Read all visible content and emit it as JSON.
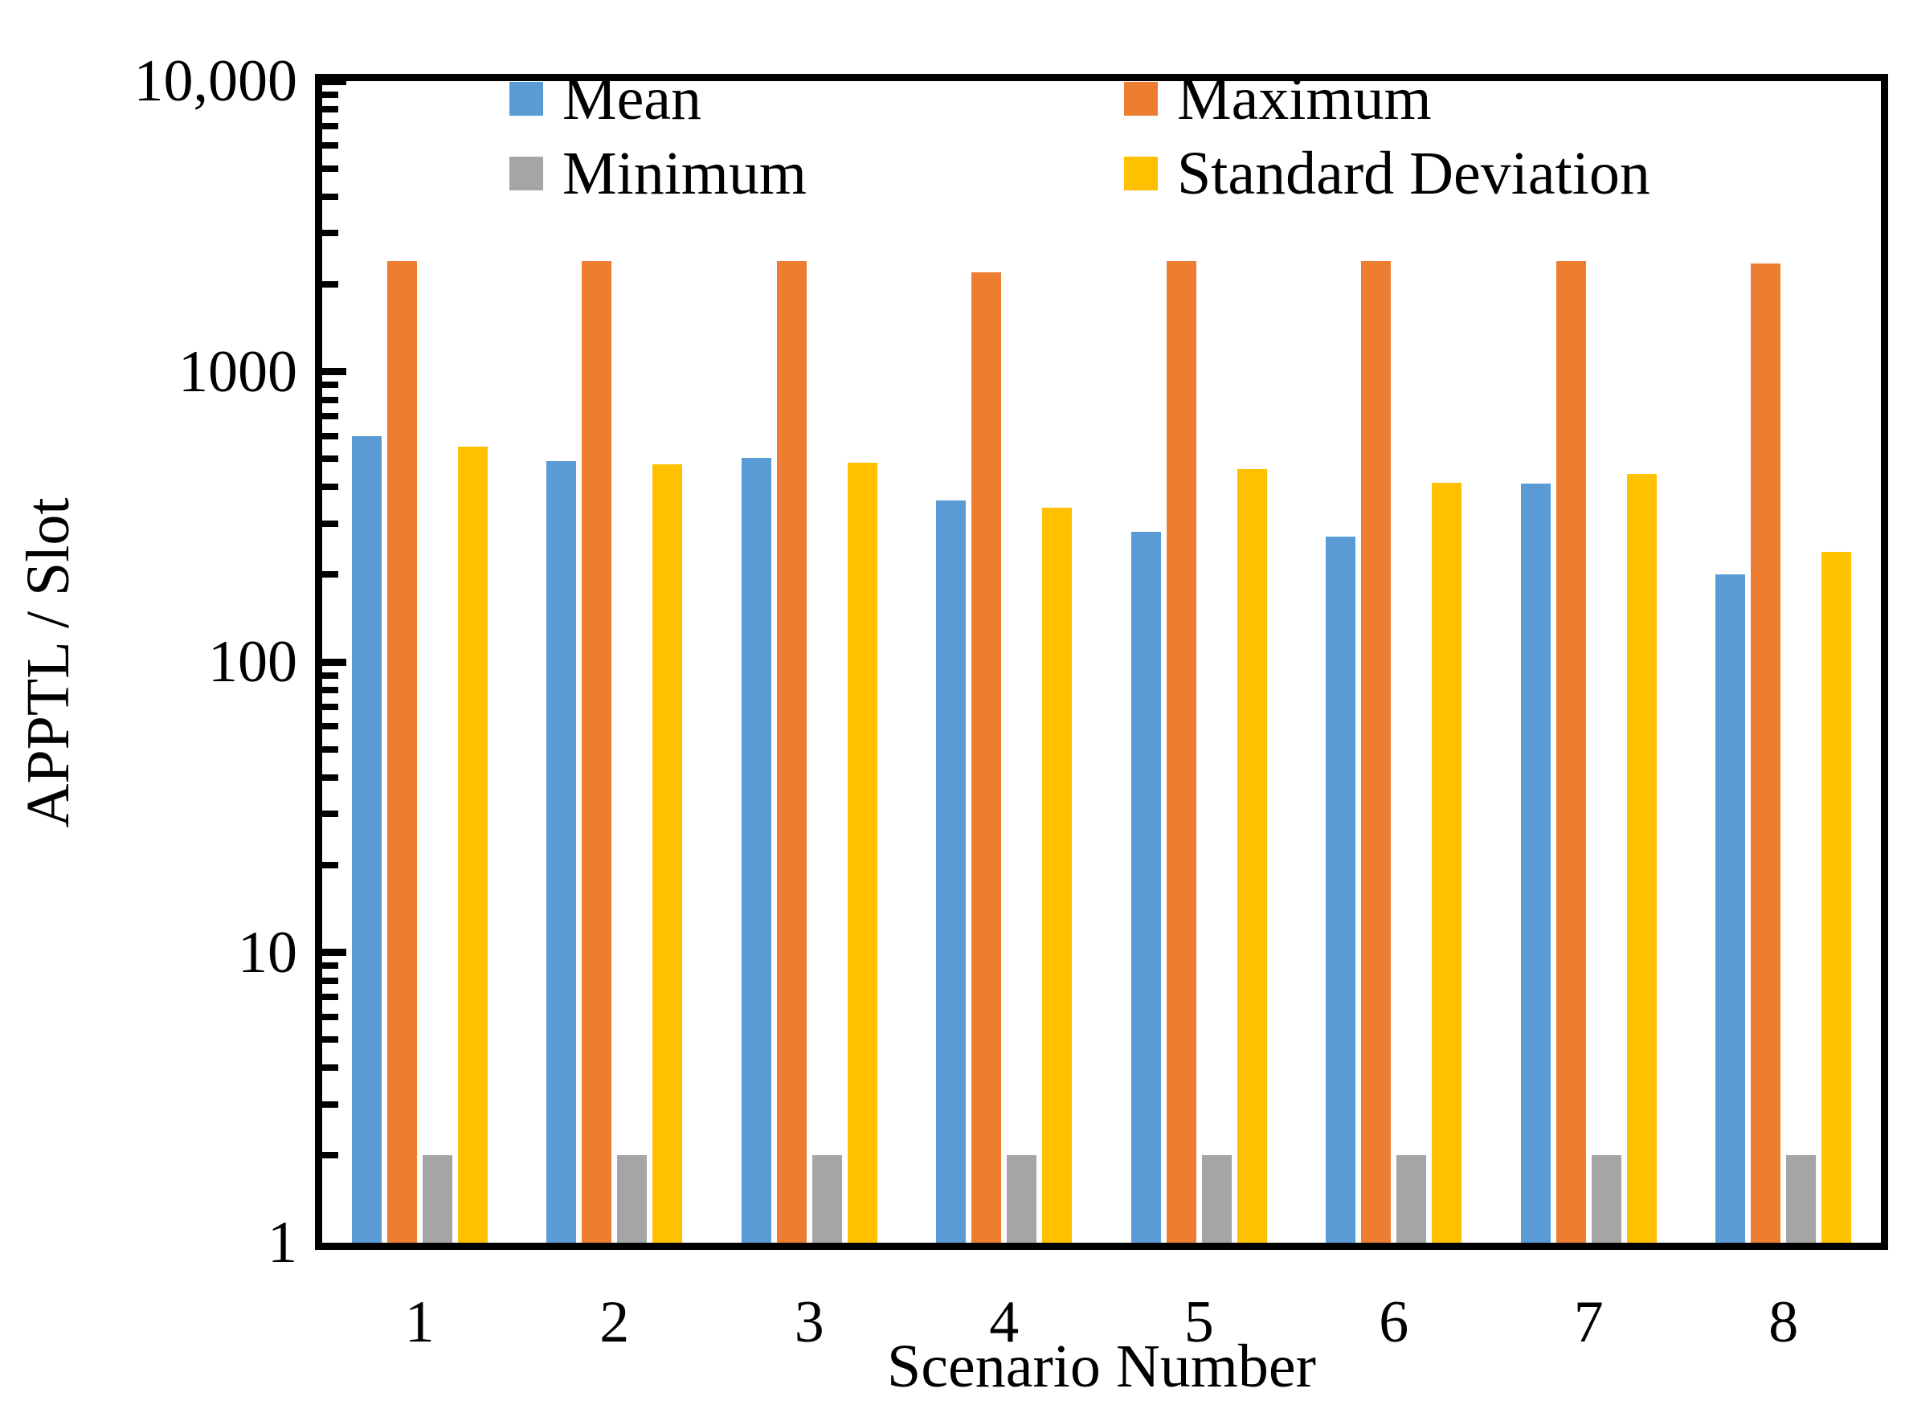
{
  "figure": {
    "background": "#ffffff",
    "text_color": "#000000",
    "frame_color": "#000000"
  },
  "chart_data": {
    "type": "bar",
    "scale": "log",
    "title": "",
    "xlabel": "Scenario Number",
    "ylabel": "APPTL / Slot",
    "categories": [
      "1",
      "2",
      "3",
      "4",
      "5",
      "6",
      "7",
      "8"
    ],
    "series": [
      {
        "name": "Mean",
        "color": "#5B9BD5",
        "values": [
          600,
          490,
          505,
          360,
          280,
          270,
          410,
          200
        ]
      },
      {
        "name": "Maximum",
        "color": "#ED7D31",
        "values": [
          2400,
          2400,
          2400,
          2200,
          2400,
          2400,
          2400,
          2350
        ]
      },
      {
        "name": "Minimum",
        "color": "#A5A5A5",
        "values": [
          2,
          2,
          2,
          2,
          2,
          2,
          2,
          2
        ]
      },
      {
        "name": "Standard Deviation",
        "color": "#FFC000",
        "values": [
          550,
          480,
          485,
          340,
          460,
          415,
          445,
          240
        ]
      }
    ],
    "ylim": [
      1,
      10000
    ],
    "y_tick_labels": [
      "1",
      "10",
      "100",
      "1000",
      "10,000"
    ],
    "grid": false,
    "legend_position": "top-inside"
  }
}
